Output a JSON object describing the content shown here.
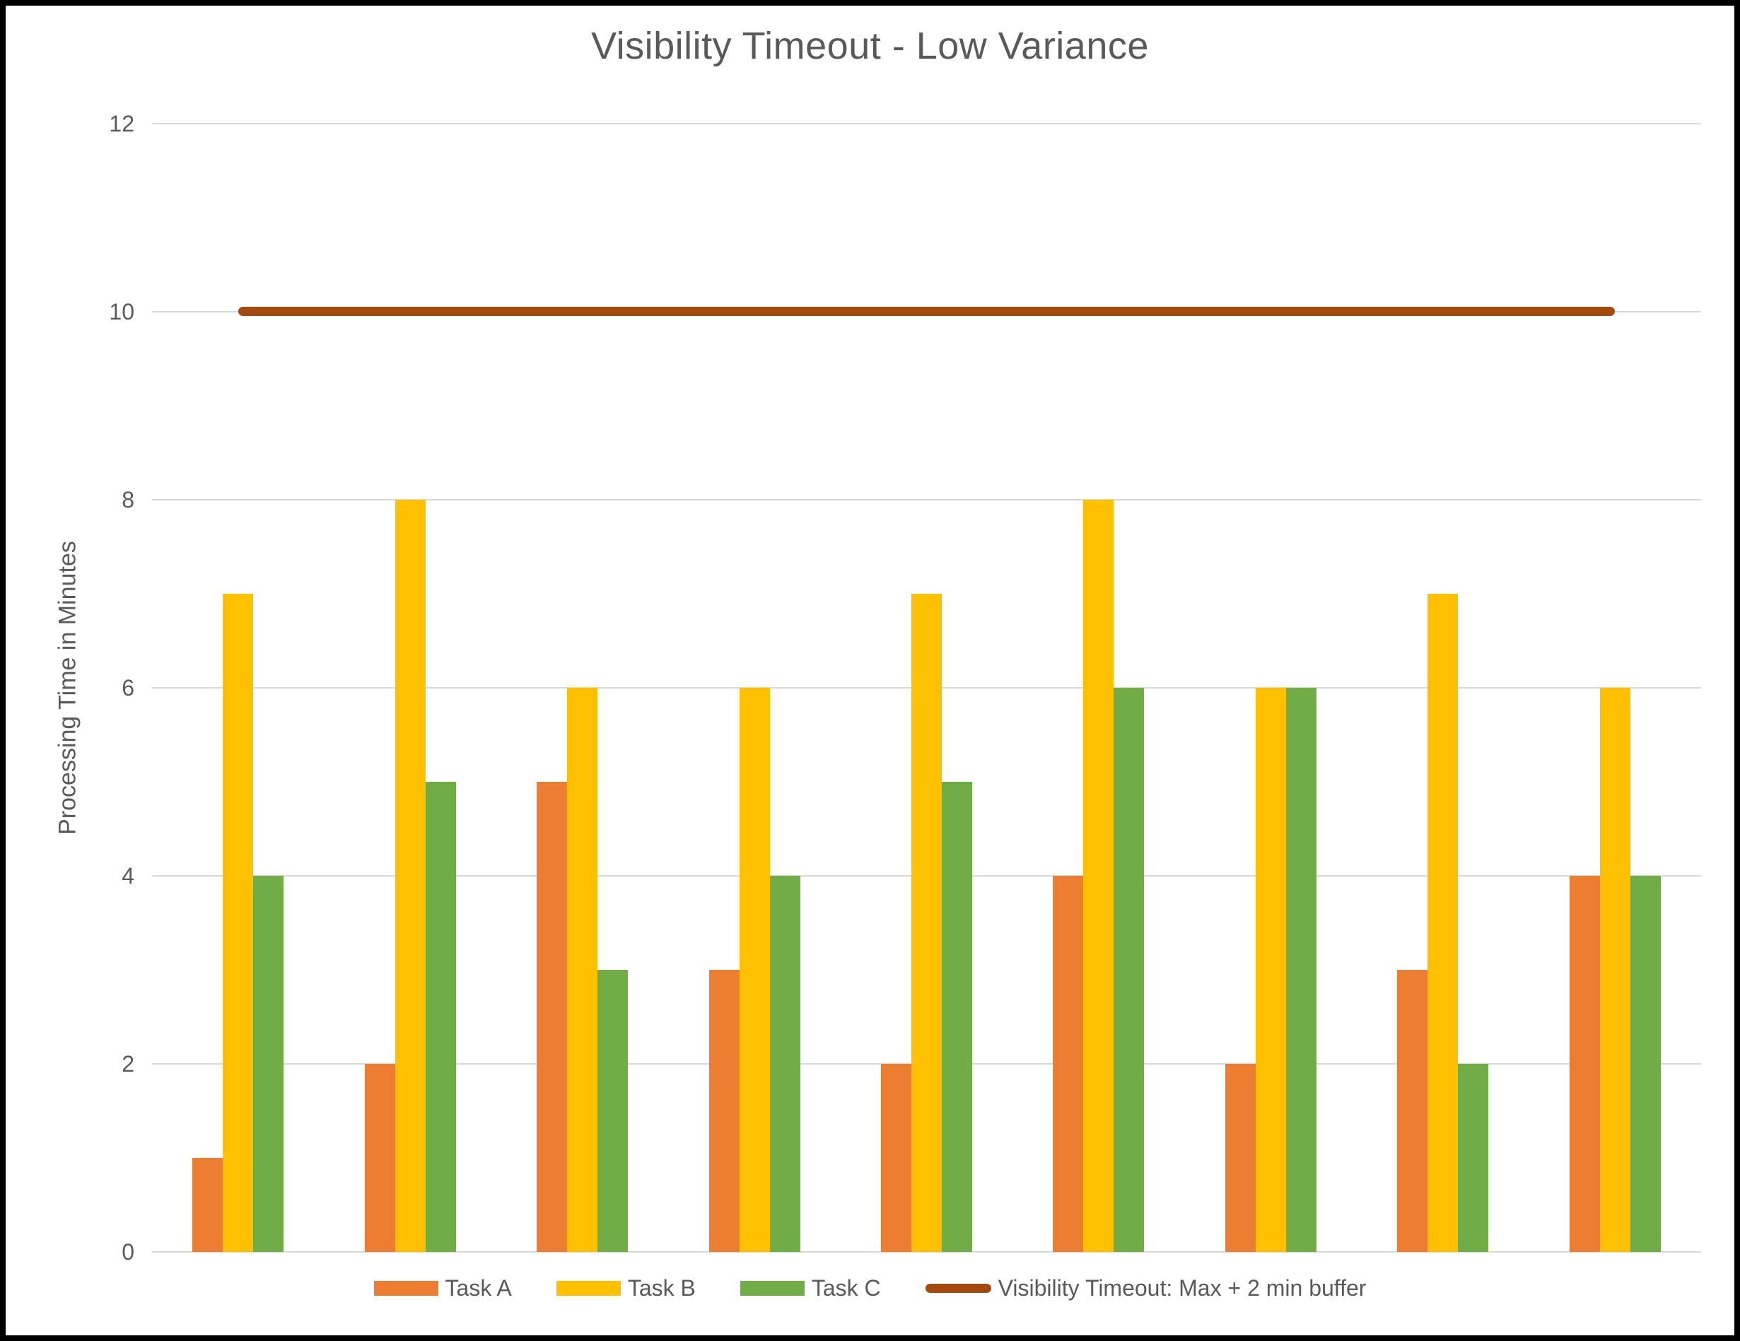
{
  "title": "Visibility Timeout - Low Variance",
  "chart_data": {
    "type": "bar",
    "title": "Visibility Timeout - Low Variance",
    "xlabel": "",
    "ylabel": "Processing Time in Minutes",
    "ylim": [
      0,
      12
    ],
    "ytick_step": 2,
    "ytick_labels": [
      "0",
      "2",
      "4",
      "6",
      "8",
      "10",
      "12"
    ],
    "x_axis_labels_visible": false,
    "num_groups": 9,
    "grid": true,
    "gridline_color": "#D9D9D9",
    "text_color": "#595959",
    "background_color": "#FFFFFF",
    "border_color": "#000000",
    "legend_position": "bottom",
    "series": [
      {
        "name": "Task A",
        "color": "#ED7D31",
        "values": [
          1,
          2,
          5,
          3,
          2,
          4,
          2,
          3,
          4
        ]
      },
      {
        "name": "Task B",
        "color": "#FFC000",
        "values": [
          7,
          8,
          6,
          6,
          7,
          8,
          6,
          7,
          6
        ]
      },
      {
        "name": "Task C",
        "color": "#70AD47",
        "values": [
          4,
          5,
          3,
          4,
          5,
          6,
          6,
          2,
          4
        ]
      }
    ],
    "reference_line": {
      "label": "Visibility Timeout: Max + 2 min buffer",
      "value": 10,
      "color": "#A5490F"
    }
  },
  "legend": {
    "items": [
      {
        "label": "Task A",
        "type": "swatch",
        "color": "#ED7D31"
      },
      {
        "label": "Task B",
        "type": "swatch",
        "color": "#FFC000"
      },
      {
        "label": "Task C",
        "type": "swatch",
        "color": "#70AD47"
      },
      {
        "label": "Visibility Timeout: Max + 2 min buffer",
        "type": "line",
        "color": "#A5490F"
      }
    ]
  }
}
